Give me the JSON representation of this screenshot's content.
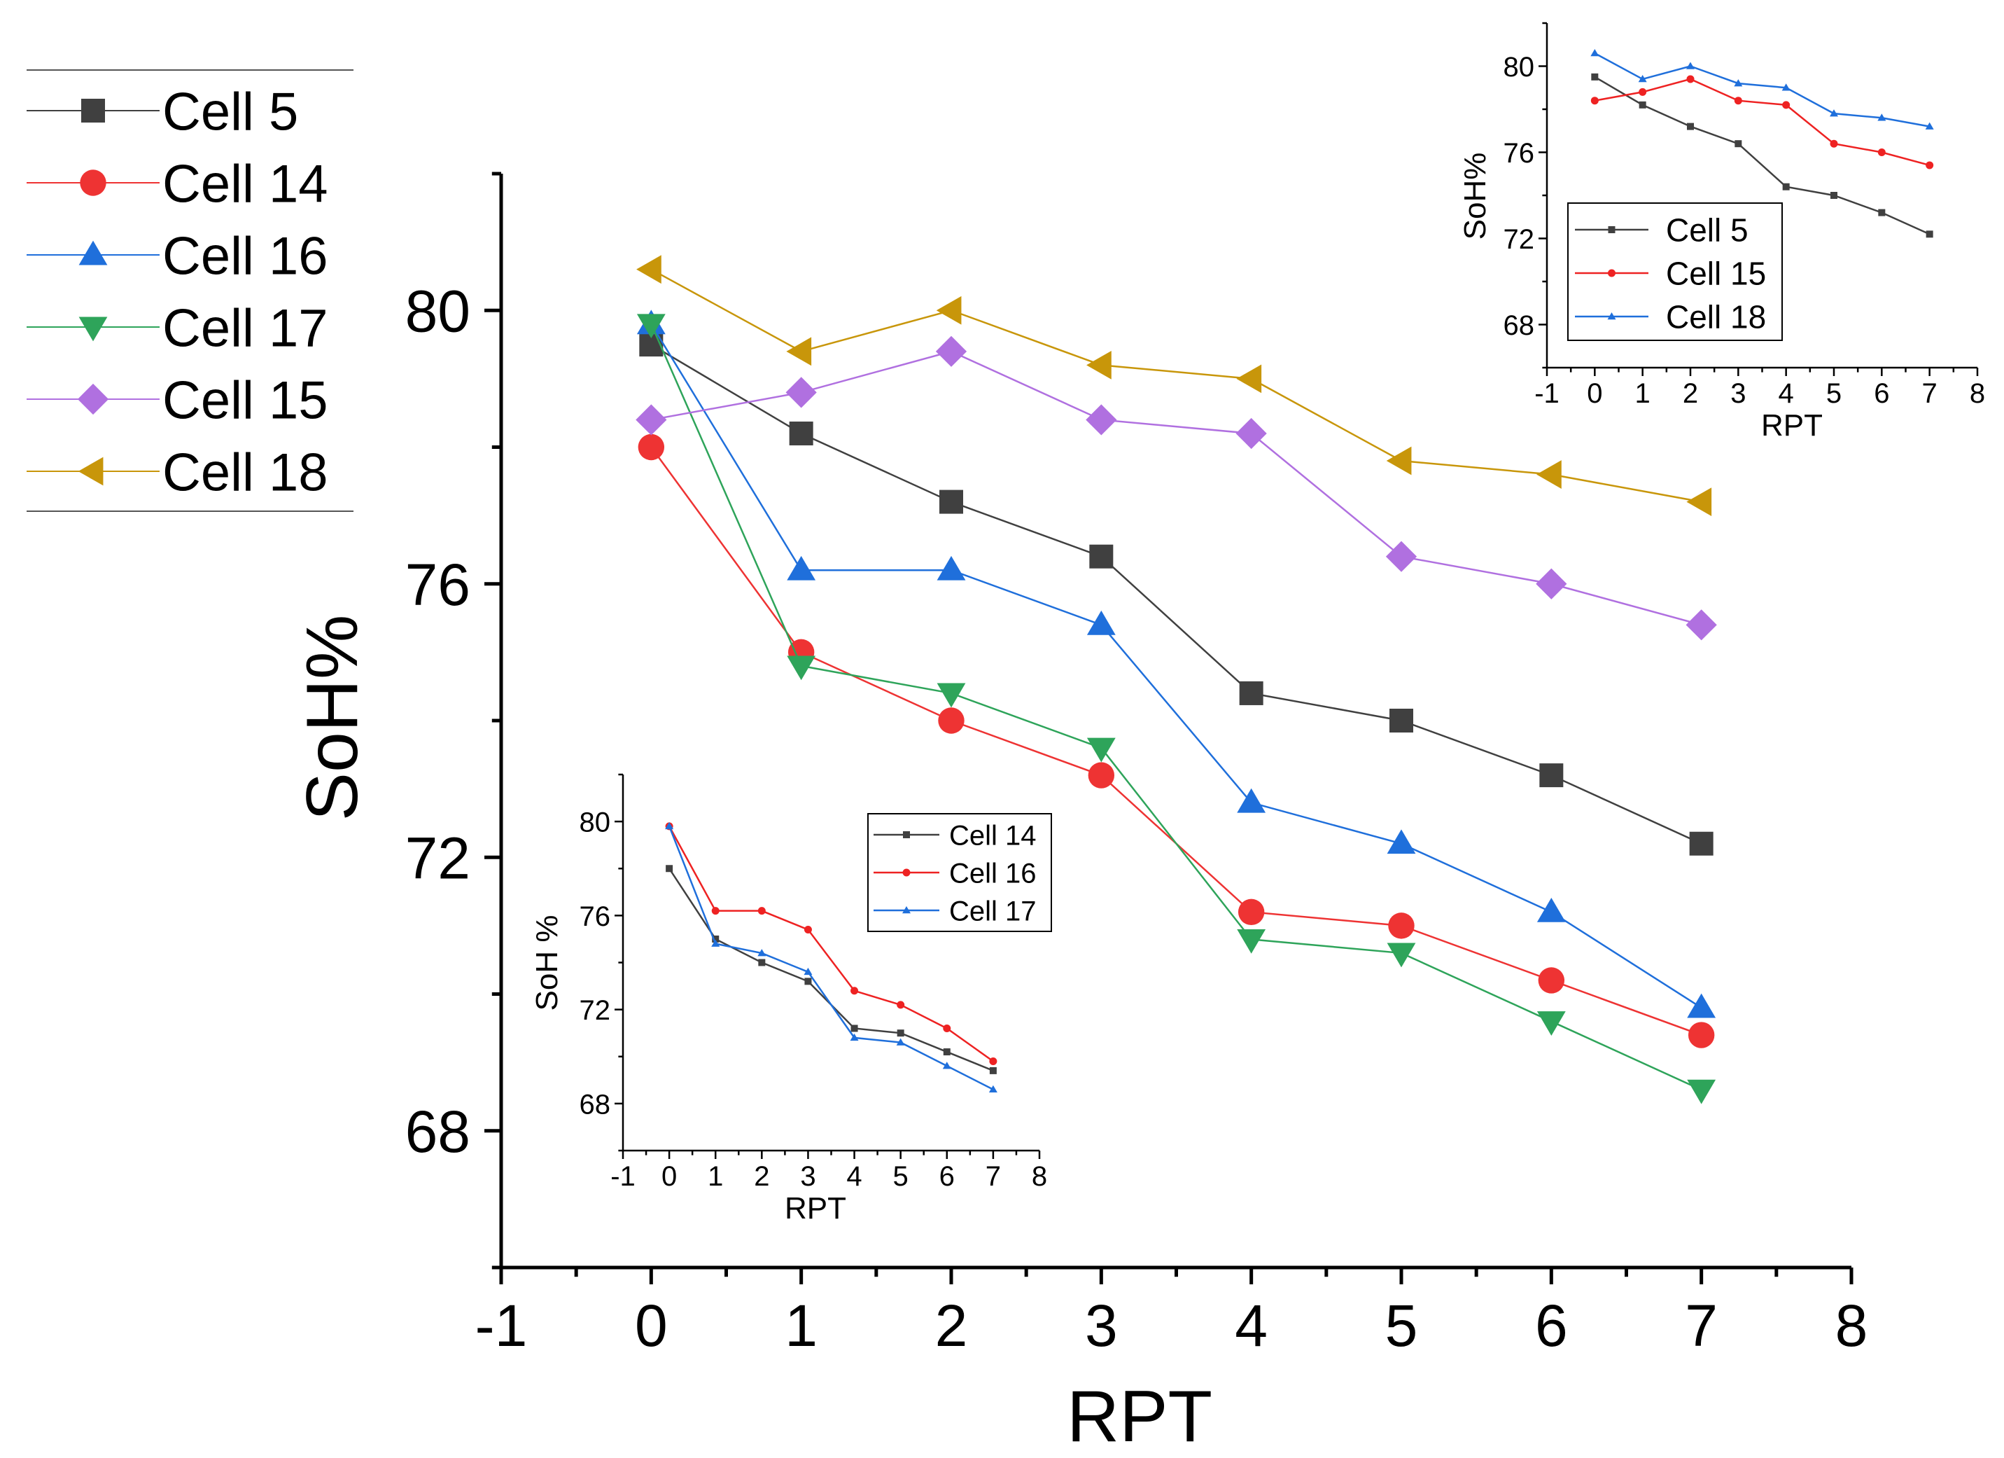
{
  "colors": {
    "Cell 5": "#404040",
    "Cell 14": "#ee3333",
    "Cell 16": "#1f6fdb",
    "Cell 17": "#2ea45a",
    "Cell 15": "#b070e0",
    "Cell 18": "#c8960a",
    "inset_cell5": "#404040",
    "inset_red": "#ee2222",
    "inset_blue": "#1f6fdb"
  },
  "chart_data": [
    {
      "id": "main",
      "type": "line",
      "title": "",
      "xlabel": "RPT",
      "ylabel": "SoH%",
      "xlim": [
        -1,
        8
      ],
      "ylim": [
        66,
        82
      ],
      "xticks": [
        -1,
        0,
        1,
        2,
        3,
        4,
        5,
        6,
        7,
        8
      ],
      "yticks": [
        68,
        72,
        76,
        80
      ],
      "grid": false,
      "legend_position": "top-left, outside plot",
      "x": [
        0,
        1,
        2,
        3,
        4,
        5,
        6,
        7
      ],
      "series": [
        {
          "name": "Cell 5",
          "marker": "square",
          "values": [
            79.5,
            78.2,
            77.2,
            76.4,
            74.4,
            74.0,
            73.2,
            72.2
          ]
        },
        {
          "name": "Cell 14",
          "marker": "circle",
          "values": [
            78.0,
            75.0,
            74.0,
            73.2,
            71.2,
            71.0,
            70.2,
            69.4
          ]
        },
        {
          "name": "Cell 16",
          "marker": "triangle-up",
          "values": [
            79.8,
            76.2,
            76.2,
            75.4,
            72.8,
            72.2,
            71.2,
            69.8
          ]
        },
        {
          "name": "Cell 17",
          "marker": "triangle-down",
          "values": [
            79.8,
            74.8,
            74.4,
            73.6,
            70.8,
            70.6,
            69.6,
            68.6
          ]
        },
        {
          "name": "Cell 15",
          "marker": "diamond",
          "values": [
            78.4,
            78.8,
            79.4,
            78.4,
            78.2,
            76.4,
            76.0,
            75.4
          ]
        },
        {
          "name": "Cell 18",
          "marker": "triangle-left",
          "values": [
            80.6,
            79.4,
            80.0,
            79.2,
            79.0,
            77.8,
            77.6,
            77.2
          ]
        }
      ]
    },
    {
      "id": "inset_top_right",
      "type": "line",
      "title": "",
      "xlabel": "RPT",
      "ylabel": "SoH%",
      "xlim": [
        -1,
        8
      ],
      "ylim": [
        66,
        82
      ],
      "xticks": [
        -1,
        0,
        1,
        2,
        3,
        4,
        5,
        6,
        7,
        8
      ],
      "yticks": [
        68,
        72,
        76,
        80
      ],
      "grid": false,
      "legend_position": "lower-left, inside plot",
      "x": [
        0,
        1,
        2,
        3,
        4,
        5,
        6,
        7
      ],
      "series": [
        {
          "name": "Cell 5",
          "marker": "square",
          "values": [
            79.5,
            78.2,
            77.2,
            76.4,
            74.4,
            74.0,
            73.2,
            72.2
          ]
        },
        {
          "name": "Cell 15",
          "marker": "circle",
          "values": [
            78.4,
            78.8,
            79.4,
            78.4,
            78.2,
            76.4,
            76.0,
            75.4
          ]
        },
        {
          "name": "Cell 18",
          "marker": "triangle-up",
          "values": [
            80.6,
            79.4,
            80.0,
            79.2,
            79.0,
            77.8,
            77.6,
            77.2
          ]
        }
      ]
    },
    {
      "id": "inset_bottom_left",
      "type": "line",
      "title": "",
      "xlabel": "RPT",
      "ylabel": "SoH %",
      "xlim": [
        -1,
        8
      ],
      "ylim": [
        66,
        82
      ],
      "xticks": [
        -1,
        0,
        1,
        2,
        3,
        4,
        5,
        6,
        7,
        8
      ],
      "yticks": [
        68,
        72,
        76,
        80
      ],
      "grid": false,
      "legend_position": "top-right, inside plot",
      "x": [
        0,
        1,
        2,
        3,
        4,
        5,
        6,
        7
      ],
      "series": [
        {
          "name": "Cell 14",
          "marker": "square",
          "values": [
            78.0,
            75.0,
            74.0,
            73.2,
            71.2,
            71.0,
            70.2,
            69.4
          ]
        },
        {
          "name": "Cell 16",
          "marker": "circle",
          "values": [
            79.8,
            76.2,
            76.2,
            75.4,
            72.8,
            72.2,
            71.2,
            69.8
          ]
        },
        {
          "name": "Cell 17",
          "marker": "triangle-up",
          "values": [
            79.8,
            74.8,
            74.4,
            73.6,
            70.8,
            70.6,
            69.6,
            68.6
          ]
        }
      ]
    }
  ]
}
